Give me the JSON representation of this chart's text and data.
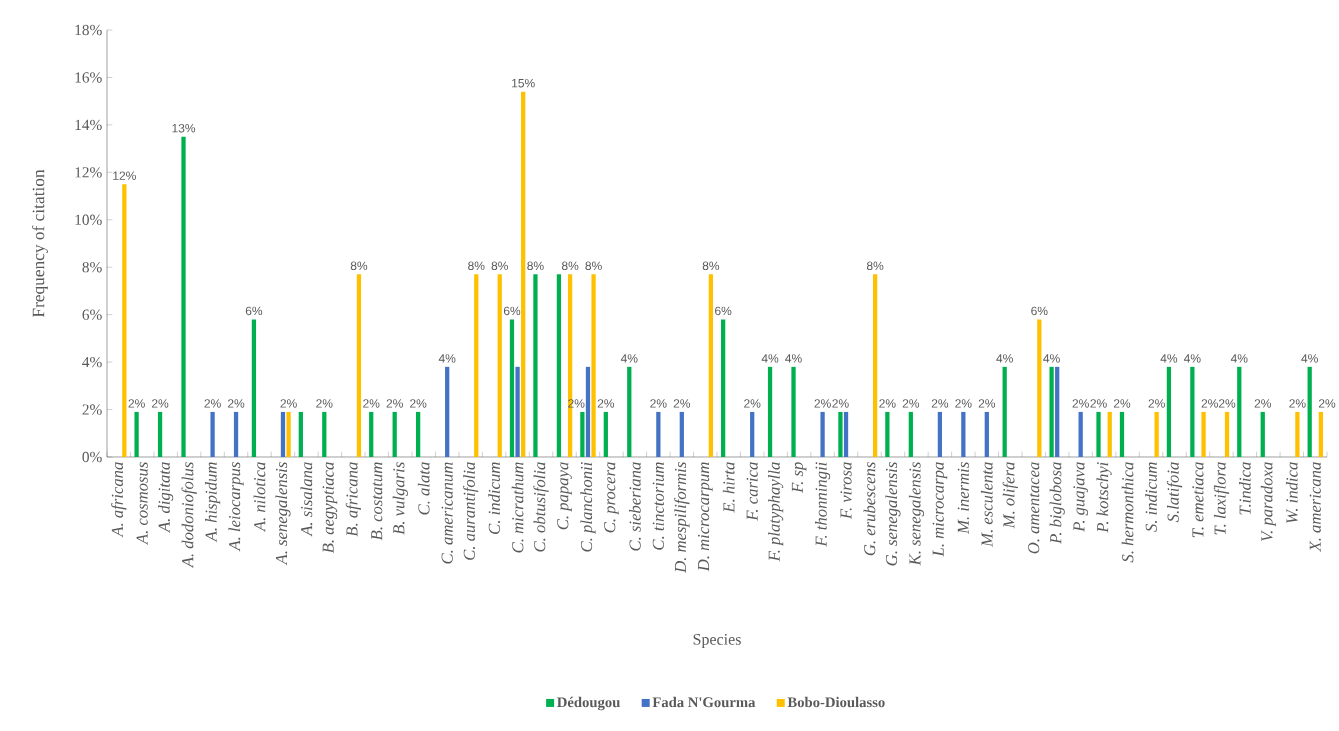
{
  "chart_data": {
    "type": "bar",
    "xlabel": "Species",
    "ylabel": "Frequency of citation",
    "categories": [
      "A. africana",
      "A. cosmosus",
      "A. digitata",
      "A. dodoniofolus",
      "A. hispidum",
      "A. leiocarpus",
      "A. nilotica",
      "A. senegalensis",
      "A. sisalana",
      "B. aegyptiaca",
      "B. africana",
      "B. costatum",
      "B. vulgaris",
      "C. alata",
      "C. americanum",
      "C. aurantifolia",
      "C. indicum",
      "C. micrathum",
      "C. obtusifolia",
      "C. papaya",
      "C. planchonii",
      "C. procera",
      "C. sieberiana",
      "C. tinctorium",
      "D. mespiliformis",
      "D. microcarpum",
      "E. hirta",
      "F. carica",
      "F. platyphaylla",
      "F. sp",
      "F. thonningii",
      "F. virosa",
      "G. erubescens",
      "G. senegalensis",
      "K. senegalensis",
      "L. microcarpa",
      "M. inermis",
      "M. esculenta",
      "M. olifera",
      "O. amentacea",
      "P. biglobosa",
      "P. guajava",
      "P. kotschyi",
      "S. hermonthica",
      "S. indicum",
      "S.latifoia",
      "T. emetiaca",
      "T. laxiflora",
      "T.indica",
      "V. paradoxa",
      "W. indica",
      "X. americana"
    ],
    "series": [
      {
        "name": "Dédougou",
        "color": "#00b050",
        "values": [
          null,
          1.9,
          1.9,
          13.5,
          null,
          null,
          5.8,
          null,
          1.9,
          1.9,
          null,
          1.9,
          1.9,
          1.9,
          null,
          null,
          null,
          5.8,
          7.7,
          7.7,
          1.9,
          1.9,
          3.8,
          null,
          null,
          null,
          5.8,
          null,
          3.8,
          3.8,
          null,
          1.9,
          null,
          1.9,
          1.9,
          null,
          null,
          null,
          3.8,
          null,
          3.8,
          null,
          1.9,
          1.9,
          null,
          3.8,
          3.8,
          null,
          3.8,
          1.9,
          null,
          3.8
        ],
        "value_labels": [
          null,
          "2%",
          "2%",
          "13%",
          null,
          null,
          "6%",
          null,
          null,
          "2%",
          null,
          "2%",
          "2%",
          "2%",
          null,
          null,
          null,
          "6%",
          "8%",
          null,
          "2%",
          "2%",
          "4%",
          null,
          null,
          null,
          "6%",
          null,
          "4%",
          "4%",
          null,
          "2%",
          null,
          "2%",
          "2%",
          null,
          null,
          null,
          "4%",
          null,
          "4%",
          null,
          "2%",
          "2%",
          null,
          "4%",
          "4%",
          null,
          "4%",
          "2%",
          null,
          "4%"
        ]
      },
      {
        "name": "Fada N'Gourma",
        "color": "#4472c4",
        "values": [
          null,
          null,
          null,
          null,
          1.9,
          1.9,
          null,
          1.9,
          null,
          null,
          null,
          null,
          null,
          null,
          3.8,
          null,
          null,
          3.8,
          null,
          null,
          3.8,
          null,
          null,
          1.9,
          1.9,
          null,
          null,
          1.9,
          null,
          null,
          1.9,
          1.9,
          null,
          null,
          null,
          1.9,
          1.9,
          1.9,
          null,
          null,
          3.8,
          1.9,
          null,
          null,
          null,
          null,
          null,
          null,
          null,
          null,
          null,
          null
        ],
        "value_labels": [
          null,
          null,
          null,
          null,
          "2%",
          "2%",
          null,
          null,
          null,
          null,
          null,
          null,
          null,
          null,
          "4%",
          null,
          null,
          null,
          null,
          null,
          null,
          null,
          null,
          "2%",
          "2%",
          null,
          null,
          "2%",
          null,
          null,
          "2%",
          null,
          null,
          null,
          null,
          "2%",
          "2%",
          "2%",
          null,
          null,
          null,
          "2%",
          null,
          null,
          null,
          null,
          null,
          null,
          null,
          null,
          null,
          null
        ]
      },
      {
        "name": "Bobo-Dioulasso",
        "color": "#ffc000",
        "values": [
          11.5,
          null,
          null,
          null,
          null,
          null,
          null,
          1.9,
          null,
          null,
          7.7,
          null,
          null,
          null,
          null,
          7.7,
          7.7,
          15.4,
          null,
          7.7,
          7.7,
          null,
          null,
          null,
          null,
          7.7,
          null,
          null,
          null,
          null,
          null,
          null,
          7.7,
          null,
          null,
          null,
          null,
          null,
          null,
          5.8,
          null,
          null,
          1.9,
          null,
          1.9,
          null,
          1.9,
          1.9,
          null,
          null,
          1.9,
          1.9
        ],
        "value_labels": [
          "12%",
          null,
          null,
          null,
          null,
          null,
          null,
          "2%",
          null,
          null,
          "8%",
          null,
          null,
          null,
          null,
          "8%",
          "8%",
          "15%",
          null,
          "8%",
          "8%",
          null,
          null,
          null,
          null,
          "8%",
          null,
          null,
          null,
          null,
          null,
          null,
          "8%",
          null,
          null,
          null,
          null,
          null,
          null,
          "6%",
          null,
          null,
          null,
          null,
          "2%",
          null,
          "2%",
          "2%",
          null,
          null,
          "2%",
          "2%"
        ]
      }
    ],
    "ylim": [
      0,
      18
    ],
    "yticks": [
      {
        "value": 0,
        "label": "0%"
      },
      {
        "value": 2,
        "label": "2%"
      },
      {
        "value": 4,
        "label": "4%"
      },
      {
        "value": 6,
        "label": "6%"
      },
      {
        "value": 8,
        "label": "8%"
      },
      {
        "value": 10,
        "label": "10%"
      },
      {
        "value": 12,
        "label": "12%"
      },
      {
        "value": 14,
        "label": "14%"
      },
      {
        "value": 16,
        "label": "16%"
      },
      {
        "value": 18,
        "label": "18%"
      }
    ],
    "legend": "bottom"
  }
}
